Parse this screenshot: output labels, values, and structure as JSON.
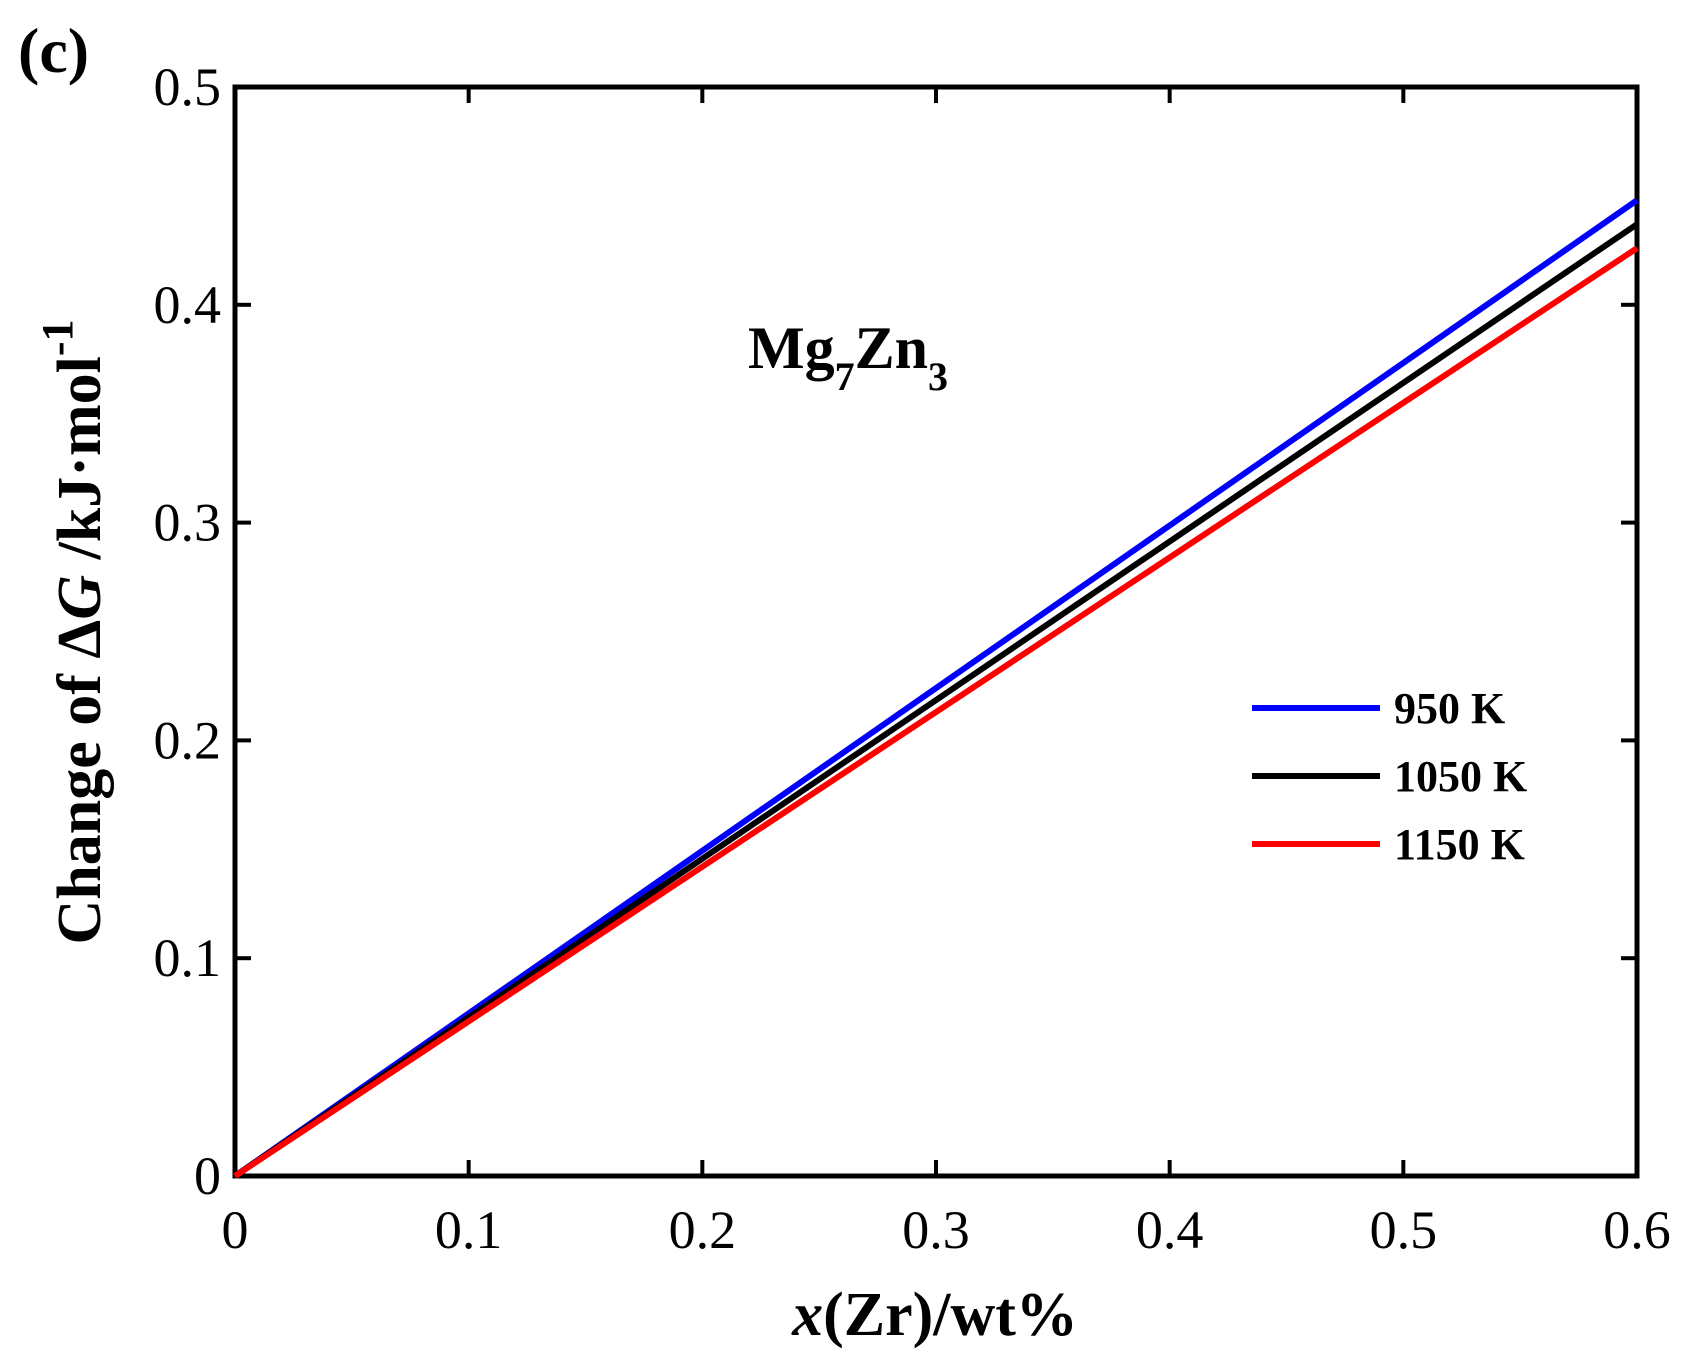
{
  "panel_label": "(c)",
  "compound": {
    "base1": "Mg",
    "sub1": "7",
    "base2": "Zn",
    "sub2": "3"
  },
  "chart_data": {
    "type": "line",
    "title": "",
    "xlabel": {
      "italic": "x",
      "rest": "(Zr)/wt%"
    },
    "ylabel": {
      "prefix": "Change of Δ",
      "italic": "G",
      "suffix": " /kJ·mol",
      "superscript": "-1"
    },
    "xlim": [
      0,
      0.6
    ],
    "ylim": [
      0,
      0.5
    ],
    "xticks": [
      0,
      0.1,
      0.2,
      0.3,
      0.4,
      0.5,
      0.6
    ],
    "yticks": [
      0,
      0.1,
      0.2,
      0.3,
      0.4,
      0.5
    ],
    "xtick_labels": [
      "0",
      "0.1",
      "0.2",
      "0.3",
      "0.4",
      "0.5",
      "0.6"
    ],
    "ytick_labels": [
      "0",
      "0.1",
      "0.2",
      "0.3",
      "0.4",
      "0.5"
    ],
    "grid": false,
    "legend_position": "right",
    "series": [
      {
        "name": "950 K",
        "color": "#0000ff",
        "x": [
          0,
          0.6
        ],
        "y": [
          0,
          0.448
        ]
      },
      {
        "name": "1050 K",
        "color": "#000000",
        "x": [
          0,
          0.6
        ],
        "y": [
          0,
          0.437
        ]
      },
      {
        "name": "1150 K",
        "color": "#ff0000",
        "x": [
          0,
          0.6
        ],
        "y": [
          0,
          0.426
        ]
      }
    ]
  }
}
